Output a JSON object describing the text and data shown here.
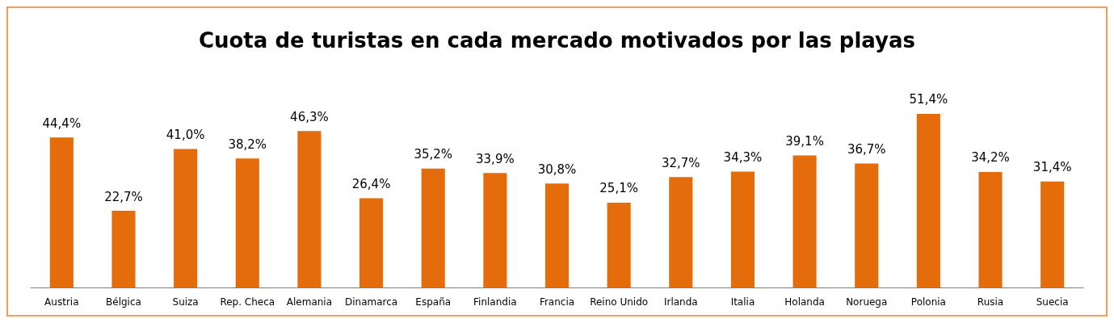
{
  "chart_data": {
    "type": "bar",
    "title": "Cuota de turistas en cada mercado motivados por las playas",
    "categories": [
      "Austria",
      "Bélgica",
      "Suiza",
      "Rep. Checa",
      "Alemania",
      "Dinamarca",
      "España",
      "Finlandia",
      "Francia",
      "Reino Unido",
      "Irlanda",
      "Italia",
      "Holanda",
      "Noruega",
      "Polonia",
      "Rusia",
      "Suecia"
    ],
    "values": [
      44.4,
      22.7,
      41.0,
      38.2,
      46.3,
      26.4,
      35.2,
      33.9,
      30.8,
      25.1,
      32.7,
      34.3,
      39.1,
      36.7,
      51.4,
      34.2,
      31.4
    ],
    "value_labels": [
      "44,4%",
      "22,7%",
      "41,0%",
      "38,2%",
      "46,3%",
      "26,4%",
      "35,2%",
      "33,9%",
      "30,8%",
      "25,1%",
      "32,7%",
      "34,3%",
      "39,1%",
      "36,7%",
      "51,4%",
      "34,2%",
      "31,4%"
    ],
    "color": "#e46c0a",
    "tick_labels": "x"
  }
}
